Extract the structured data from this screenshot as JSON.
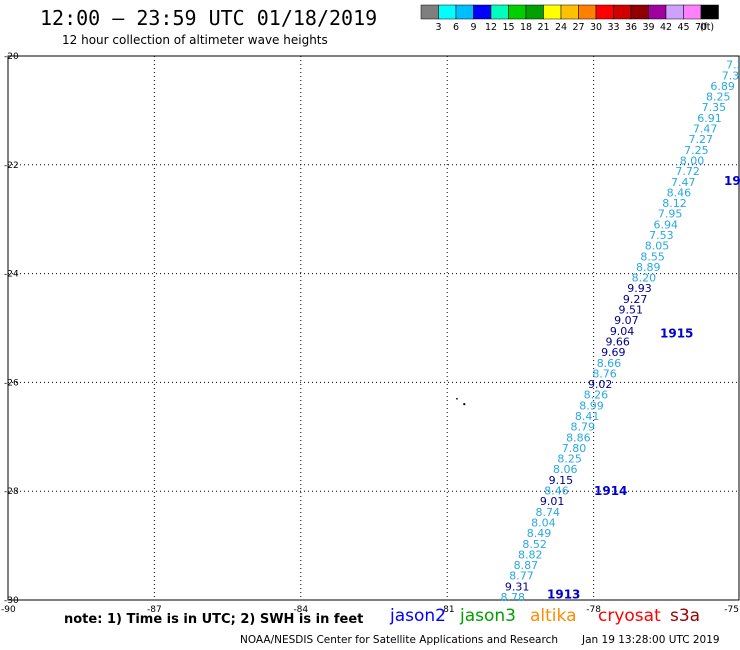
{
  "header": {
    "title": "12:00 – 23:59 UTC 01/18/2019",
    "subtitle": "12 hour collection of altimeter wave heights"
  },
  "legend": {
    "colors": [
      "#7f7f7f",
      "#00ffff",
      "#00bfff",
      "#0000ff",
      "#00ffbf",
      "#00d000",
      "#00a000",
      "#ffff00",
      "#ffc000",
      "#ff8000",
      "#ff0000",
      "#d00000",
      "#900000",
      "#a000a0",
      "#d0a0ff",
      "#ff80ff",
      "#000000"
    ],
    "labels": [
      "3",
      "6",
      "9",
      "12",
      "15",
      "18",
      "21",
      "24",
      "27",
      "30",
      "33",
      "36",
      "39",
      "42",
      "45",
      "70",
      "(ft)"
    ]
  },
  "axes": {
    "lat_labels": [
      "-20",
      "-22",
      "-24",
      "-26",
      "-28",
      "-30"
    ],
    "lon_labels": [
      "-90",
      "-87",
      "-84",
      "-81",
      "-78",
      "-75"
    ]
  },
  "track": {
    "color_light": "#2aa8e0",
    "color_dark": "#00008b",
    "values": [
      {
        "text": "7",
        "dark": false
      },
      {
        "text": "7.3",
        "dark": false
      },
      {
        "text": "7.3",
        "dark": false
      },
      {
        "text": "6.89",
        "dark": false
      },
      {
        "text": "8.25",
        "dark": false
      },
      {
        "text": "7.35",
        "dark": false
      },
      {
        "text": "6.91",
        "dark": false
      },
      {
        "text": "7.47",
        "dark": false
      },
      {
        "text": "7.27",
        "dark": false
      },
      {
        "text": "7.25",
        "dark": false
      },
      {
        "text": "8.00",
        "dark": false
      },
      {
        "text": "7.72",
        "dark": false
      },
      {
        "text": "7.47",
        "dark": false
      },
      {
        "text": "8.46",
        "dark": false
      },
      {
        "text": "8.12",
        "dark": false
      },
      {
        "text": "7.95",
        "dark": false
      },
      {
        "text": "6.94",
        "dark": false
      },
      {
        "text": "7.53",
        "dark": false
      },
      {
        "text": "8.05",
        "dark": false
      },
      {
        "text": "8.55",
        "dark": false
      },
      {
        "text": "8.89",
        "dark": false
      },
      {
        "text": "8.20",
        "dark": false
      },
      {
        "text": "9.93",
        "dark": true
      },
      {
        "text": "9.27",
        "dark": true
      },
      {
        "text": "9.51",
        "dark": true
      },
      {
        "text": "9.07",
        "dark": true
      },
      {
        "text": "9.04",
        "dark": true
      },
      {
        "text": "9.66",
        "dark": true
      },
      {
        "text": "9.69",
        "dark": true
      },
      {
        "text": "8.66",
        "dark": false
      },
      {
        "text": "8.76",
        "dark": false
      },
      {
        "text": "9.02",
        "dark": true
      },
      {
        "text": "8.26",
        "dark": false
      },
      {
        "text": "8.99",
        "dark": false
      },
      {
        "text": "8.41",
        "dark": false
      },
      {
        "text": "8.79",
        "dark": false
      },
      {
        "text": "8.86",
        "dark": false
      },
      {
        "text": "7.80",
        "dark": false
      },
      {
        "text": "8.25",
        "dark": false
      },
      {
        "text": "8.06",
        "dark": false
      },
      {
        "text": "9.15",
        "dark": true
      },
      {
        "text": "8.46",
        "dark": false
      },
      {
        "text": "9.01",
        "dark": true
      },
      {
        "text": "8.74",
        "dark": false
      },
      {
        "text": "8.04",
        "dark": false
      },
      {
        "text": "8.49",
        "dark": false
      },
      {
        "text": "8.52",
        "dark": false
      },
      {
        "text": "8.82",
        "dark": false
      },
      {
        "text": "8.87",
        "dark": false
      },
      {
        "text": "8.77",
        "dark": false
      },
      {
        "text": "9.31",
        "dark": true
      },
      {
        "text": "8.78",
        "dark": false
      }
    ],
    "time_labels": [
      {
        "text": "19",
        "lat": -22.3
      },
      {
        "text": "1915",
        "lat": -25.1
      },
      {
        "text": "1914",
        "lat": -28.0
      },
      {
        "text": "1913",
        "lat": -29.9
      }
    ]
  },
  "footer": {
    "note": "note: 1) Time is in UTC; 2) SWH is in feet",
    "satellites": [
      {
        "name": "jason2",
        "color": "#0000ff"
      },
      {
        "name": "jason3",
        "color": "#00a000"
      },
      {
        "name": "altika",
        "color": "#ff8c00"
      },
      {
        "name": "cryosat",
        "color": "#ff0000"
      },
      {
        "name": "s3a",
        "color": "#a00000"
      }
    ],
    "credit": "NOAA/NESDIS Center for Satellite Applications and Research",
    "timestamp": "Jan 19 13:28:00 UTC 2019"
  }
}
